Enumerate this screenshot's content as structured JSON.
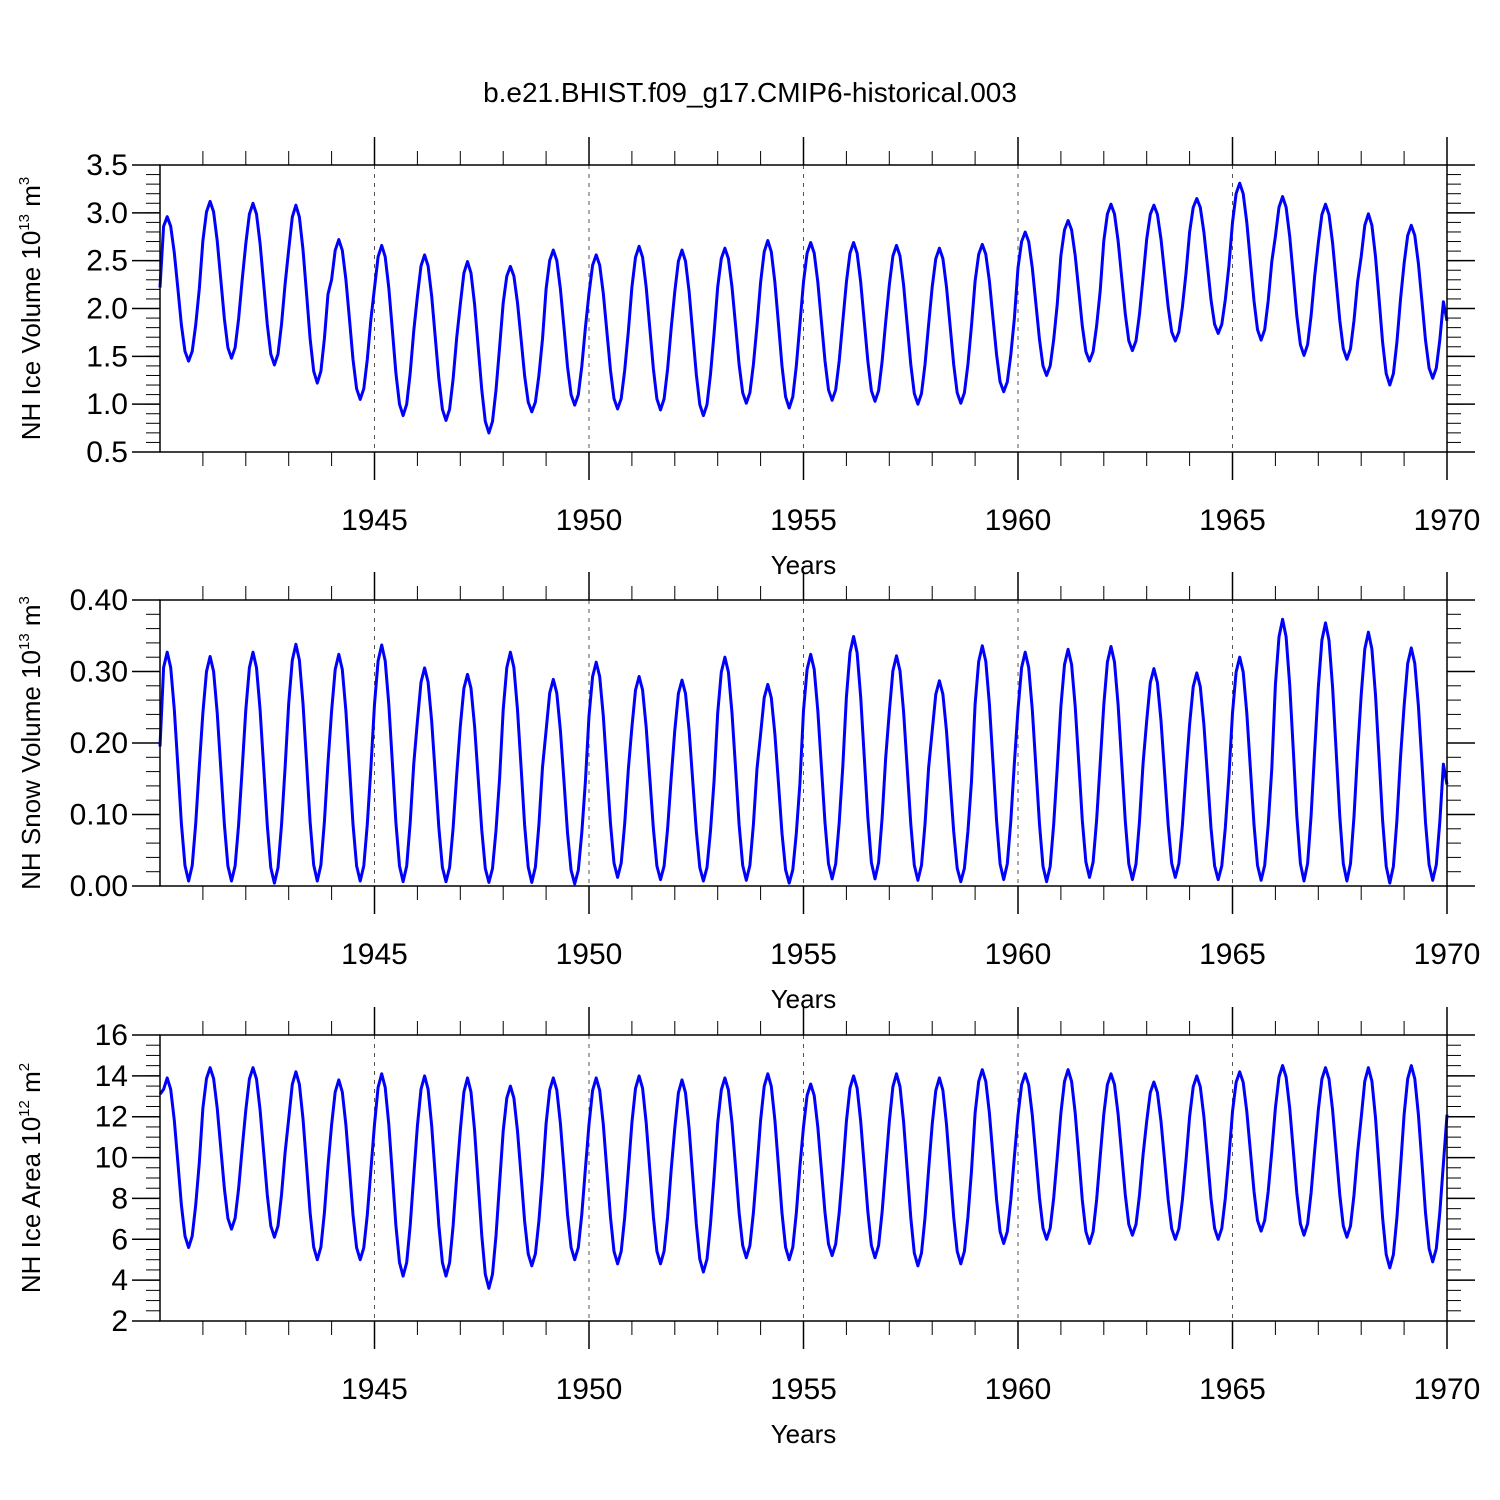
{
  "figure": {
    "title": "b.e21.BHIST.f09_g17.CMIP6-historical.003"
  },
  "colors": {
    "line": "#0000ff",
    "axes": "#000000",
    "grid": "#555555"
  },
  "chart_data": [
    {
      "type": "line",
      "ylabel": {
        "prefix": "NH Ice Volume 10",
        "exp": "13",
        "unit": " m",
        "unit_exp": "3"
      },
      "xlabel": "Years",
      "xlim": [
        1940,
        1970
      ],
      "ylim": [
        0.5,
        3.5
      ],
      "yticks": [
        "0.5",
        "1.0",
        "1.5",
        "2.0",
        "2.5",
        "3.0",
        "3.5"
      ],
      "xticks": [
        "1945",
        "1950",
        "1955",
        "1960",
        "1965",
        "1970"
      ],
      "minor_y_step": 0.1,
      "minima": [
        1.45,
        1.48,
        1.41,
        1.22,
        1.05,
        0.88,
        0.83,
        0.7,
        0.92,
        0.99,
        0.95,
        0.94,
        0.88,
        1.01,
        0.96,
        1.04,
        1.03,
        1.0,
        1.01,
        1.13,
        1.3,
        1.45,
        1.56,
        1.66,
        1.74,
        1.67,
        1.51,
        1.47,
        1.2,
        1.27
      ],
      "maxima": [
        2.96,
        3.12,
        3.1,
        3.08,
        2.72,
        2.66,
        2.56,
        2.49,
        2.44,
        2.61,
        2.56,
        2.65,
        2.61,
        2.63,
        2.71,
        2.69,
        2.69,
        2.66,
        2.63,
        2.67,
        2.8,
        2.92,
        3.09,
        3.08,
        3.15,
        3.31,
        3.17,
        3.09,
        2.99,
        2.87
      ],
      "start": 2.22,
      "end": 1.87
    },
    {
      "type": "line",
      "ylabel": {
        "prefix": "NH Snow Volume 10",
        "exp": "13",
        "unit": " m",
        "unit_exp": "3"
      },
      "xlabel": "Years",
      "xlim": [
        1940,
        1970
      ],
      "ylim": [
        0.0,
        0.4
      ],
      "yticks": [
        "0.00",
        "0.10",
        "0.20",
        "0.30",
        "0.40"
      ],
      "xticks": [
        "1945",
        "1950",
        "1955",
        "1960",
        "1965",
        "1970"
      ],
      "minor_y_step": 0.02,
      "minima": [
        0.007,
        0.007,
        0.004,
        0.007,
        0.007,
        0.006,
        0.006,
        0.005,
        0.005,
        0.003,
        0.012,
        0.009,
        0.007,
        0.008,
        0.004,
        0.01,
        0.01,
        0.008,
        0.006,
        0.009,
        0.006,
        0.012,
        0.009,
        0.012,
        0.009,
        0.008,
        0.007,
        0.007,
        0.004,
        0.008
      ],
      "maxima": [
        0.327,
        0.321,
        0.327,
        0.338,
        0.324,
        0.337,
        0.305,
        0.296,
        0.327,
        0.289,
        0.313,
        0.293,
        0.288,
        0.32,
        0.282,
        0.324,
        0.349,
        0.322,
        0.287,
        0.336,
        0.327,
        0.331,
        0.335,
        0.304,
        0.298,
        0.32,
        0.373,
        0.368,
        0.355,
        0.333
      ],
      "start": 0.195,
      "end": 0.142
    },
    {
      "type": "line",
      "ylabel": {
        "prefix": "NH Ice Area 10",
        "exp": "12",
        "unit": " m",
        "unit_exp": "2"
      },
      "xlabel": "Years",
      "xlim": [
        1940,
        1970
      ],
      "ylim": [
        2,
        16
      ],
      "yticks": [
        "2",
        "4",
        "6",
        "8",
        "10",
        "12",
        "14",
        "16"
      ],
      "xticks": [
        "1945",
        "1950",
        "1955",
        "1960",
        "1965",
        "1970"
      ],
      "minor_y_step": 0.5,
      "minima": [
        5.6,
        6.5,
        6.1,
        5.0,
        5.0,
        4.2,
        4.2,
        3.6,
        4.7,
        5.0,
        4.8,
        4.8,
        4.4,
        5.1,
        5.0,
        5.2,
        5.1,
        4.7,
        4.8,
        5.8,
        6.0,
        5.8,
        6.2,
        6.0,
        6.0,
        6.4,
        6.2,
        6.1,
        4.6,
        4.9
      ],
      "maxima": [
        13.9,
        14.4,
        14.4,
        14.2,
        13.8,
        14.1,
        14.0,
        13.9,
        13.5,
        13.9,
        13.9,
        14.0,
        13.8,
        13.9,
        14.1,
        13.6,
        14.0,
        14.1,
        13.9,
        14.3,
        14.1,
        14.3,
        14.1,
        13.7,
        14.0,
        14.2,
        14.5,
        14.4,
        14.4,
        14.5
      ],
      "start": 13.1,
      "end": 12.1
    }
  ]
}
